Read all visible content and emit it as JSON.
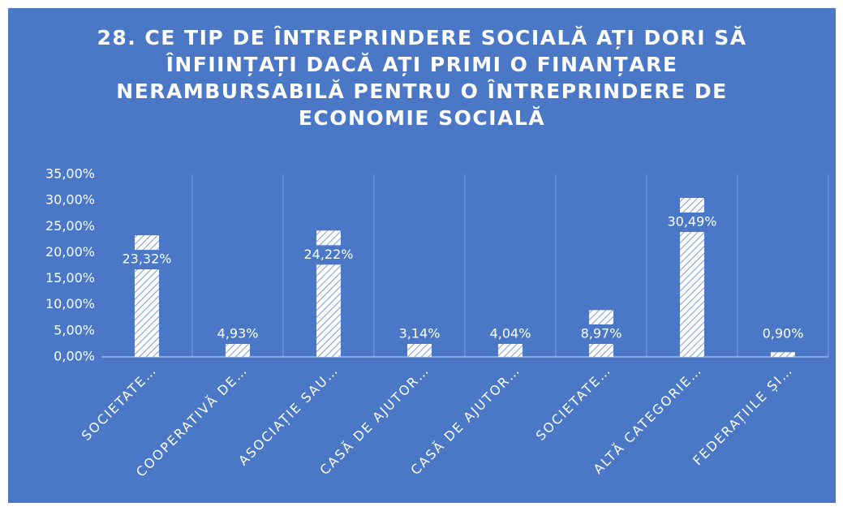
{
  "chart_data": {
    "type": "bar",
    "title": "28. CE TIP DE ÎNTREPRINDERE SOCIALĂ AȚI DORI SĂ ÎNFIINȚAȚI DACĂ AȚI PRIMI O FINANȚARE NERAMBURSABILĂ PENTRU O ÎNTREPRINDERE DE ECONOMIE SOCIALĂ",
    "categories": [
      "SOCIETATE…",
      "COOPERATIVĂ DE…",
      "ASOCIAȚIE SAU…",
      "CASĂ DE AJUTOR…",
      "CASĂ DE AJUTOR…",
      "SOCIETATE…",
      "ALTĂ CATEGORIE…",
      "FEDERAȚIILE ȘI…"
    ],
    "values": [
      23.32,
      4.93,
      24.22,
      3.14,
      4.04,
      8.97,
      30.49,
      0.9
    ],
    "value_labels": [
      "23,32%",
      "4,93%",
      "24,22%",
      "3,14%",
      "4,04%",
      "8,97%",
      "30,49%",
      "0,90%"
    ],
    "color": "#ffffff",
    "ylim": [
      0,
      35
    ],
    "yticks": [
      {
        "value": 0,
        "label": "0,00%"
      },
      {
        "value": 5,
        "label": "5,00%"
      },
      {
        "value": 10,
        "label": "10,00%"
      },
      {
        "value": 15,
        "label": "15,00%"
      },
      {
        "value": 20,
        "label": "20,00%"
      },
      {
        "value": 25,
        "label": "25,00%"
      },
      {
        "value": 30,
        "label": "30,00%"
      },
      {
        "value": 35,
        "label": "35,00%"
      }
    ],
    "grid": false
  }
}
